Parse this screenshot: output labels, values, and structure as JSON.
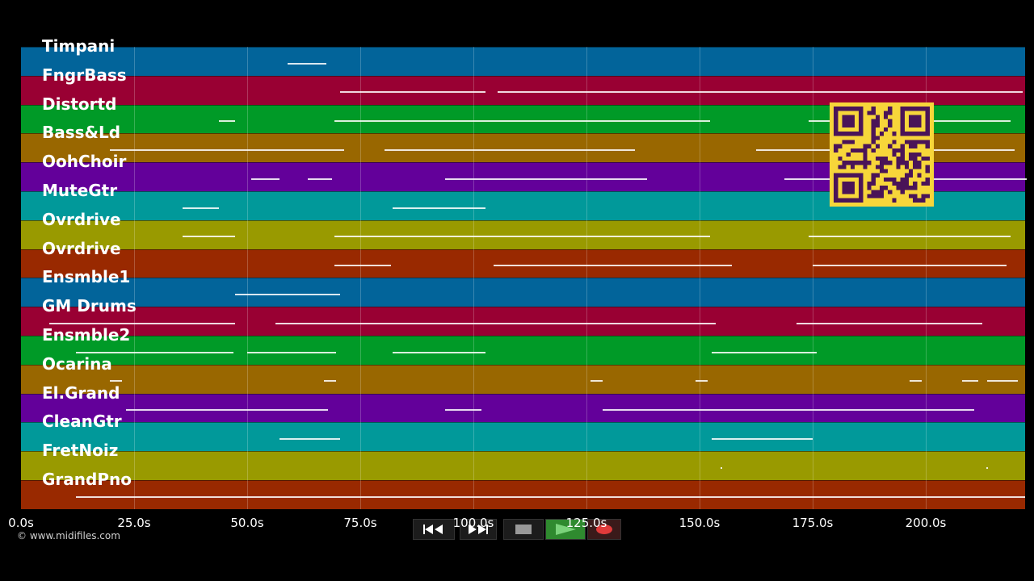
{
  "tracks": [
    {
      "name": "Timpani",
      "color": "#02649a"
    },
    {
      "name": "FngrBass",
      "color": "#990033"
    },
    {
      "name": "Distortd",
      "color": "#009a27"
    },
    {
      "name": "Bass&Ld",
      "color": "#996700"
    },
    {
      "name": "OohChoir",
      "color": "#63009a"
    },
    {
      "name": "MuteGtr",
      "color": "#01999a"
    },
    {
      "name": "Ovrdrive",
      "color": "#999a00"
    },
    {
      "name": "Ovrdrive",
      "color": "#992900"
    },
    {
      "name": "Ensmble1",
      "color": "#02649a"
    },
    {
      "name": "GM Drums",
      "color": "#990033"
    },
    {
      "name": "Ensmble2",
      "color": "#009a27"
    },
    {
      "name": "Ocarina",
      "color": "#996700"
    },
    {
      "name": "El.Grand",
      "color": "#63009a"
    },
    {
      "name": "CleanGtr",
      "color": "#01999a"
    },
    {
      "name": "FretNoiz",
      "color": "#999a00"
    },
    {
      "name": "GrandPno",
      "color": "#992900"
    }
  ],
  "timeline": {
    "ticks": [
      "0.0s",
      "25.0s",
      "50.0s",
      "75.0s",
      "100.0s",
      "125.0s",
      "150.0s",
      "175.0s",
      "200.0s"
    ]
  },
  "copyright": "© www.midifiles.com",
  "transport": {
    "rewind": "rewind-icon",
    "forward": "fast-forward-icon",
    "stop": "stop-icon",
    "play": "play-icon",
    "record": "record-icon",
    "play_color": "#2f8a2f",
    "record_color": "#e03a3a"
  },
  "qr_color": "#f7d63a"
}
